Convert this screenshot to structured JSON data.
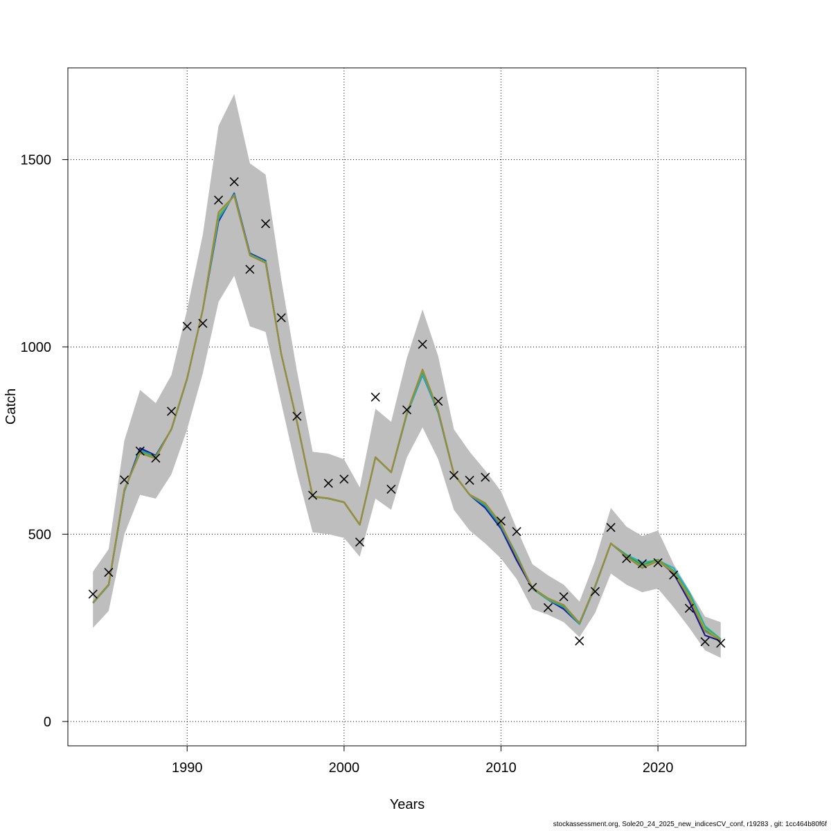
{
  "chart_data": {
    "type": "line",
    "title": "",
    "xlabel": "Years",
    "ylabel": "Catch",
    "xlim": [
      1982.4,
      1825.6
    ],
    "ylim": [
      -65,
      1745
    ],
    "x_ticks": [
      1990,
      2000,
      2010,
      2020
    ],
    "x_tick_labels": [
      "1990",
      "2000",
      "2010",
      "2020"
    ],
    "y_ticks": [
      0,
      500,
      1000,
      1500
    ],
    "y_tick_labels": [
      "0",
      "500",
      "1000",
      "1500"
    ],
    "grid": true,
    "band_color": "#bebebe",
    "years": [
      1984,
      1985,
      1986,
      1987,
      1988,
      1989,
      1990,
      1991,
      1992,
      1993,
      1994,
      1995,
      1996,
      1997,
      1998,
      1999,
      2000,
      2001,
      2002,
      2003,
      2004,
      2005,
      2006,
      2007,
      2008,
      2009,
      2010,
      2011,
      2012,
      2013,
      2014,
      2015,
      2016,
      2017,
      2018,
      2019,
      2020,
      2021,
      2022,
      2023,
      2024
    ],
    "band_upper": [
      400,
      460,
      750,
      885,
      850,
      925,
      1100,
      1300,
      1590,
      1675,
      1490,
      1460,
      1180,
      935,
      720,
      715,
      700,
      625,
      835,
      800,
      970,
      1100,
      975,
      780,
      720,
      670,
      615,
      515,
      420,
      390,
      365,
      320,
      430,
      570,
      520,
      495,
      510,
      420,
      350,
      280,
      265
    ],
    "band_lower": [
      250,
      295,
      500,
      605,
      595,
      660,
      780,
      930,
      1120,
      1190,
      1055,
      1040,
      850,
      665,
      505,
      500,
      490,
      440,
      595,
      565,
      705,
      785,
      700,
      565,
      510,
      475,
      435,
      380,
      300,
      285,
      265,
      225,
      290,
      395,
      365,
      345,
      355,
      305,
      250,
      190,
      170
    ],
    "observed": [
      340,
      398,
      645,
      722,
      703,
      828,
      1055,
      1063,
      1392,
      1441,
      1207,
      1329,
      1078,
      815,
      604,
      636,
      647,
      479,
      866,
      620,
      832,
      1007,
      855,
      657,
      644,
      652,
      535,
      507,
      358,
      304,
      333,
      215,
      347,
      518,
      435,
      421,
      424,
      391,
      302,
      213,
      209
    ],
    "series": [
      {
        "color": "#1a1a8c",
        "values": [
          316,
          364,
          615,
          730,
          710,
          780,
          915,
          1100,
          1335,
          1410,
          1250,
          1230,
          980,
          800,
          600,
          595,
          585,
          525,
          705,
          665,
          820,
          930,
          825,
          660,
          605,
          570,
          515,
          430,
          355,
          325,
          300,
          260,
          360,
          475,
          440,
          410,
          430,
          395,
          320,
          230,
          215
        ]
      },
      {
        "color": "#1f7ec9",
        "values": [
          316,
          364,
          615,
          725,
          708,
          780,
          915,
          1100,
          1340,
          1408,
          1248,
          1228,
          980,
          800,
          600,
          595,
          585,
          525,
          705,
          665,
          820,
          925,
          825,
          660,
          605,
          575,
          520,
          440,
          355,
          325,
          305,
          260,
          360,
          475,
          440,
          410,
          430,
          400,
          335,
          245,
          218
        ]
      },
      {
        "color": "#24b3c4",
        "values": [
          316,
          364,
          617,
          722,
          707,
          780,
          915,
          1100,
          1345,
          1406,
          1247,
          1227,
          980,
          800,
          600,
          595,
          585,
          525,
          705,
          665,
          820,
          928,
          826,
          660,
          605,
          578,
          525,
          445,
          355,
          325,
          306,
          260,
          360,
          475,
          445,
          425,
          430,
          410,
          345,
          255,
          220
        ]
      },
      {
        "color": "#2f9e44",
        "values": [
          317,
          365,
          618,
          720,
          706,
          781,
          916,
          1100,
          1350,
          1405,
          1246,
          1226,
          980,
          800,
          600,
          595,
          585,
          525,
          705,
          665,
          822,
          935,
          828,
          660,
          605,
          580,
          525,
          443,
          355,
          327,
          308,
          262,
          362,
          475,
          443,
          418,
          432,
          402,
          338,
          250,
          219
        ]
      },
      {
        "color": "#7ab648",
        "values": [
          317,
          365,
          619,
          718,
          704,
          781,
          916,
          1100,
          1352,
          1404,
          1245,
          1225,
          980,
          800,
          600,
          595,
          585,
          525,
          705,
          665,
          823,
          938,
          830,
          660,
          605,
          582,
          527,
          441,
          356,
          328,
          310,
          263,
          362,
          475,
          440,
          412,
          430,
          400,
          335,
          248,
          218
        ]
      },
      {
        "color": "#9b8a3c",
        "values": [
          318,
          366,
          620,
          716,
          702,
          782,
          917,
          1100,
          1360,
          1403,
          1244,
          1224,
          980,
          800,
          601,
          596,
          586,
          526,
          706,
          666,
          824,
          940,
          830,
          661,
          606,
          583,
          528,
          441,
          357,
          329,
          311,
          263,
          362,
          476,
          440,
          410,
          428,
          398,
          330,
          240,
          217
        ]
      }
    ]
  },
  "footer": "stockassessment.org, Sole20_24_2025_new_indicesCV_conf, r19283 , git: 1cc464b80f6f"
}
